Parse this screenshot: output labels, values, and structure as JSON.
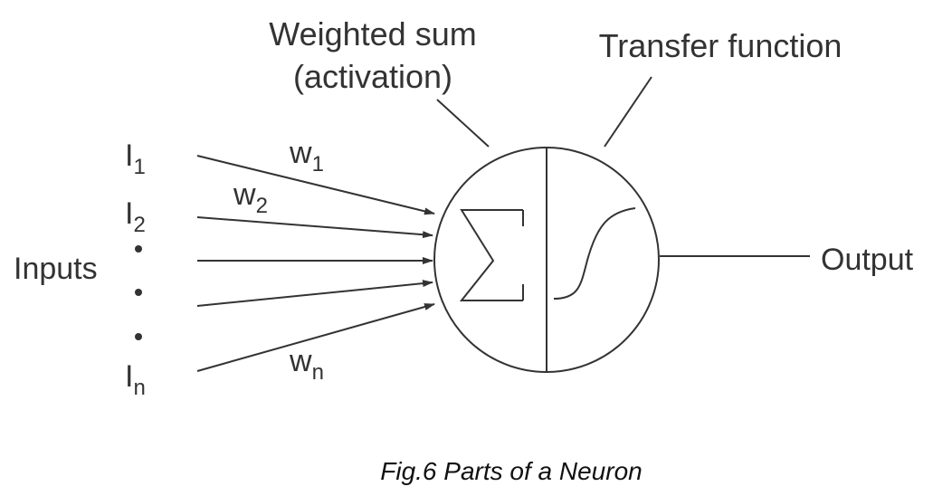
{
  "diagram": {
    "weighted_sum_line1": "Weighted sum",
    "weighted_sum_line2": "(activation)",
    "transfer_function": "Transfer function",
    "inputs_label": "Inputs",
    "output_label": "Output",
    "input_1": {
      "base": "I",
      "sub": "1"
    },
    "input_2": {
      "base": "I",
      "sub": "2"
    },
    "input_n": {
      "base": "I",
      "sub": "n"
    },
    "weight_1": {
      "base": "w",
      "sub": "1"
    },
    "weight_2": {
      "base": "w",
      "sub": "2"
    },
    "weight_n": {
      "base": "w",
      "sub": "n"
    },
    "caption": "Fig.6 Parts of a Neuron"
  },
  "colors": {
    "ink": "#333333",
    "caption": "#111111",
    "background": "#ffffff"
  },
  "icons": {
    "sum_symbol": "sigma-icon",
    "transfer_curve": "sigmoid-icon"
  }
}
